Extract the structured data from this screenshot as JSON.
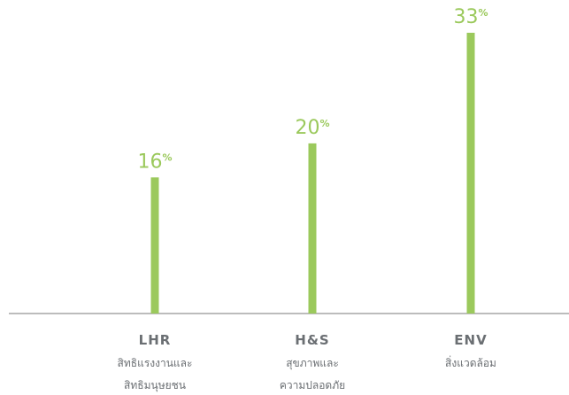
{
  "chart_data": {
    "type": "bar",
    "categories": [
      "LHR",
      "H&S",
      "ENV"
    ],
    "category_descriptions": [
      [
        "สิทธิแรงงานและ",
        "สิทธิมนุษยชน"
      ],
      [
        "สุขภาพและ",
        "ความปลอดภัย"
      ],
      [
        "สิ่งแวดล้อม"
      ]
    ],
    "values": [
      16,
      20,
      33
    ],
    "unit": "%",
    "ylim": [
      0,
      33
    ],
    "grid": false,
    "legend": "none",
    "title": "",
    "xlabel": "",
    "ylabel": ""
  },
  "colors": {
    "bar": "#9bc95c",
    "value_text": "#9bc95c",
    "axis_line": "#a6a6a6",
    "category_text": "#6b6f73"
  }
}
